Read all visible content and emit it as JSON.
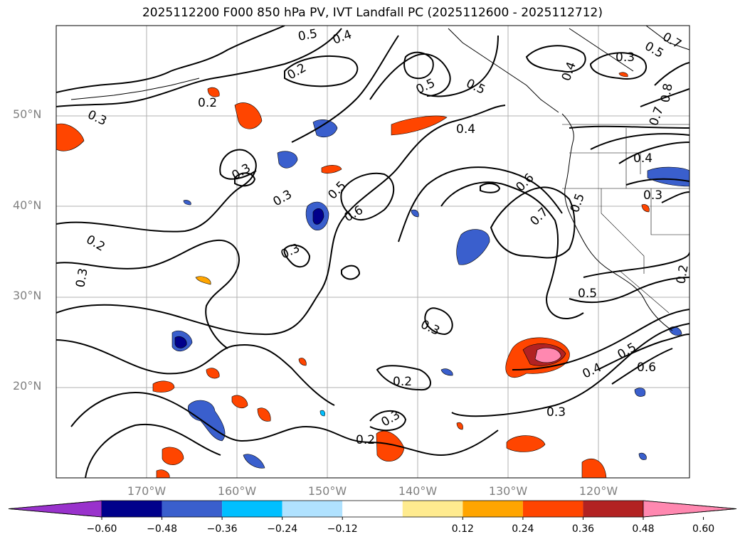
{
  "title": "2025112200 F000 850 hPa PV, IVT Landfall PC (2025112600 - 2025112712)",
  "latitude_labels": [
    "50°N",
    "40°N",
    "30°N",
    "20°N"
  ],
  "longitude_labels": [
    "170°W",
    "160°W",
    "150°W",
    "140°W",
    "130°W",
    "120°W"
  ],
  "colorbar": {
    "tick_labels": [
      "−0.60",
      "−0.48",
      "−0.36",
      "−0.24",
      "−0.12",
      "0.12",
      "0.24",
      "0.36",
      "0.48",
      "0.60"
    ],
    "colors": [
      "#9932cc",
      "#00008b",
      "#3a5fcd",
      "#00bfff",
      "#b0e2ff",
      "#ffffff",
      "#ffeb8f",
      "#ffa500",
      "#ff4500",
      "#b22222",
      "#ff88b0"
    ]
  },
  "contour_labels": [
    "0.3",
    "0.2",
    "0.4",
    "0.5",
    "0.6",
    "0.7",
    "0.8"
  ]
}
